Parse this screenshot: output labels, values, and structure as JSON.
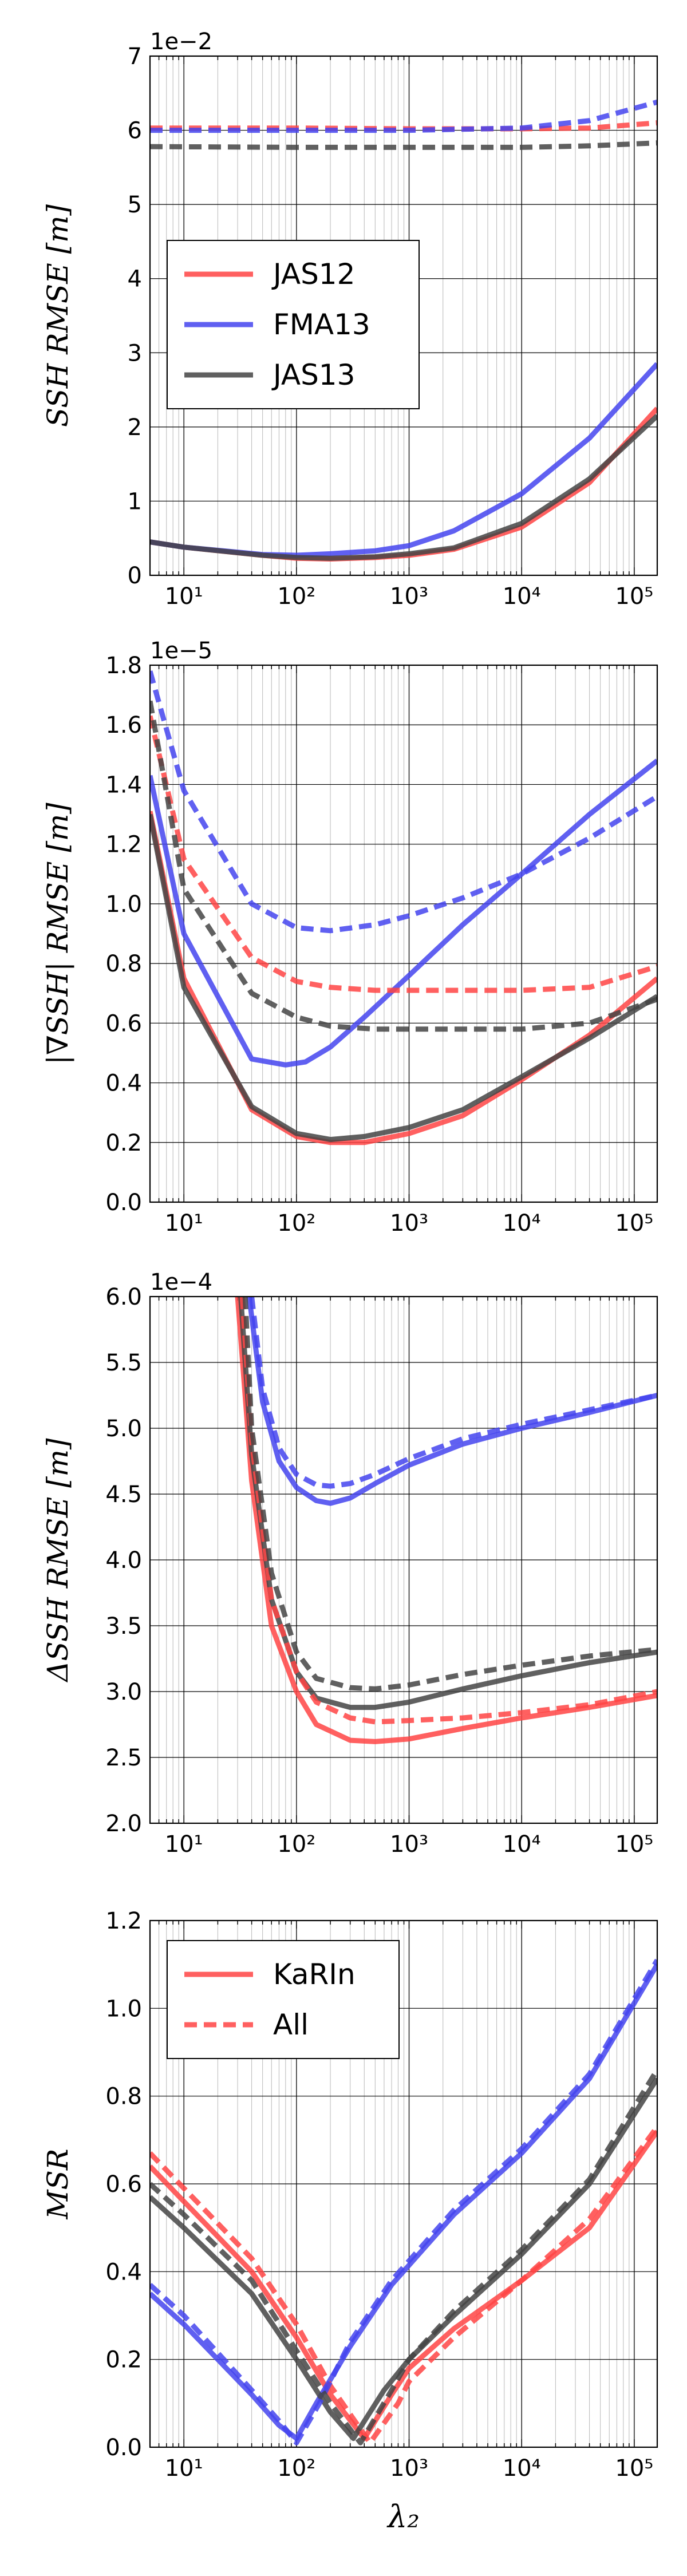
{
  "figure": {
    "xlabel": "λ₂",
    "x_tick_labels": [
      "10¹",
      "10²",
      "10³",
      "10⁴",
      "10⁵"
    ]
  },
  "chart_data": [
    {
      "type": "line",
      "xscale": "log",
      "xlim": [
        5,
        160000
      ],
      "ylim": [
        0,
        0.07
      ],
      "scale_label": "1e−2",
      "ylabel": "SSH RMSE [m]",
      "yticks": [
        0,
        0.01,
        0.02,
        0.03,
        0.04,
        0.05,
        0.06,
        0.07
      ],
      "ytick_labels": [
        "0",
        "1",
        "2",
        "3",
        "4",
        "5",
        "6",
        "7"
      ],
      "grid": true,
      "legend": {
        "position": "upper-left",
        "entries": [
          "JAS12",
          "FMA13",
          "JAS13"
        ]
      },
      "series": [
        {
          "name": "JAS12",
          "color": "#ff4444",
          "style": "solid",
          "x": [
            5,
            10,
            50,
            100,
            200,
            500,
            1000,
            2500,
            10000,
            40000,
            160000
          ],
          "y": [
            0.0045,
            0.0038,
            0.0027,
            0.0023,
            0.0022,
            0.0024,
            0.0027,
            0.0035,
            0.0065,
            0.0125,
            0.0225
          ]
        },
        {
          "name": "FMA13",
          "color": "#4444ee",
          "style": "solid",
          "x": [
            5,
            10,
            50,
            100,
            200,
            500,
            1000,
            2500,
            10000,
            40000,
            160000
          ],
          "y": [
            0.0045,
            0.0038,
            0.0028,
            0.0027,
            0.0029,
            0.0033,
            0.004,
            0.006,
            0.011,
            0.0185,
            0.0285
          ]
        },
        {
          "name": "JAS13",
          "color": "#444444",
          "style": "solid",
          "x": [
            5,
            10,
            50,
            100,
            200,
            500,
            1000,
            2500,
            10000,
            40000,
            160000
          ],
          "y": [
            0.0045,
            0.0038,
            0.0027,
            0.0024,
            0.0023,
            0.0025,
            0.0029,
            0.0037,
            0.007,
            0.013,
            0.0215
          ]
        },
        {
          "name": "JAS12 (All)",
          "color": "#ff4444",
          "style": "dashed",
          "x": [
            5,
            100,
            1000,
            10000,
            40000,
            160000
          ],
          "y": [
            0.0603,
            0.0603,
            0.0602,
            0.0602,
            0.0603,
            0.061
          ]
        },
        {
          "name": "FMA13 (All)",
          "color": "#4444ee",
          "style": "dashed",
          "x": [
            5,
            100,
            1000,
            10000,
            40000,
            160000
          ],
          "y": [
            0.06,
            0.06,
            0.06,
            0.0603,
            0.0613,
            0.0638
          ]
        },
        {
          "name": "JAS13 (All)",
          "color": "#444444",
          "style": "dashed",
          "x": [
            5,
            100,
            1000,
            10000,
            40000,
            160000
          ],
          "y": [
            0.0578,
            0.0577,
            0.0577,
            0.0577,
            0.0579,
            0.0583
          ]
        }
      ]
    },
    {
      "type": "line",
      "xscale": "log",
      "xlim": [
        5,
        160000
      ],
      "ylim": [
        0,
        1.8e-05
      ],
      "scale_label": "1e−5",
      "ylabel": "|∇SSH| RMSE [m]",
      "yticks": [
        0,
        2e-06,
        4e-06,
        6e-06,
        8e-06,
        1e-05,
        1.2e-05,
        1.4e-05,
        1.6e-05,
        1.8e-05
      ],
      "ytick_labels": [
        "0.0",
        "0.2",
        "0.4",
        "0.6",
        "0.8",
        "1.0",
        "1.2",
        "1.4",
        "1.6",
        "1.8"
      ],
      "grid": true,
      "series": [
        {
          "name": "JAS12",
          "color": "#ff4444",
          "style": "solid",
          "x": [
            5,
            10,
            40,
            100,
            200,
            400,
            1000,
            3000,
            10000,
            40000,
            160000
          ],
          "y": [
            1.31e-05,
            7.5e-06,
            3.1e-06,
            2.2e-06,
            2e-06,
            2e-06,
            2.3e-06,
            2.9e-06,
            4.1e-06,
            5.6e-06,
            7.5e-06
          ]
        },
        {
          "name": "FMA13",
          "color": "#4444ee",
          "style": "solid",
          "x": [
            5,
            10,
            40,
            80,
            120,
            200,
            400,
            1000,
            3000,
            10000,
            40000,
            160000
          ],
          "y": [
            1.43e-05,
            9e-06,
            4.8e-06,
            4.6e-06,
            4.7e-06,
            5.2e-06,
            6.2e-06,
            7.6e-06,
            9.3e-06,
            1.1e-05,
            1.3e-05,
            1.48e-05
          ]
        },
        {
          "name": "JAS13",
          "color": "#444444",
          "style": "solid",
          "x": [
            5,
            10,
            40,
            100,
            200,
            400,
            1000,
            3000,
            10000,
            40000,
            160000
          ],
          "y": [
            1.3e-05,
            7.2e-06,
            3.2e-06,
            2.3e-06,
            2.1e-06,
            2.2e-06,
            2.5e-06,
            3.1e-06,
            4.2e-06,
            5.5e-06,
            6.9e-06
          ]
        },
        {
          "name": "JAS12 (All)",
          "color": "#ff4444",
          "style": "dashed",
          "x": [
            5,
            10,
            40,
            100,
            200,
            500,
            1000,
            10000,
            40000,
            160000
          ],
          "y": [
            1.63e-05,
            1.15e-05,
            8.2e-06,
            7.4e-06,
            7.2e-06,
            7.1e-06,
            7.1e-06,
            7.1e-06,
            7.2e-06,
            7.9e-06
          ]
        },
        {
          "name": "FMA13 (All)",
          "color": "#4444ee",
          "style": "dashed",
          "x": [
            5,
            10,
            40,
            100,
            200,
            500,
            1000,
            3000,
            10000,
            40000,
            160000
          ],
          "y": [
            1.78e-05,
            1.38e-05,
            1e-05,
            9.2e-06,
            9.1e-06,
            9.3e-06,
            9.6e-06,
            1.02e-05,
            1.1e-05,
            1.22e-05,
            1.36e-05
          ]
        },
        {
          "name": "JAS13 (All)",
          "color": "#444444",
          "style": "dashed",
          "x": [
            5,
            10,
            40,
            100,
            200,
            500,
            1000,
            10000,
            40000,
            160000
          ],
          "y": [
            1.68e-05,
            1.05e-05,
            7e-06,
            6.2e-06,
            5.9e-06,
            5.8e-06,
            5.8e-06,
            5.8e-06,
            6e-06,
            6.8e-06
          ]
        }
      ]
    },
    {
      "type": "line",
      "xscale": "log",
      "xlim": [
        5,
        160000
      ],
      "ylim": [
        0.0002,
        0.0006
      ],
      "scale_label": "1e−4",
      "ylabel": "ΔSSH RMSE [m]",
      "yticks": [
        0.0002,
        0.00025,
        0.0003,
        0.00035,
        0.0004,
        0.00045,
        0.0005,
        0.00055,
        0.0006
      ],
      "ytick_labels": [
        "2.0",
        "2.5",
        "3.0",
        "3.5",
        "4.0",
        "4.5",
        "5.0",
        "5.5",
        "6.0"
      ],
      "grid": true,
      "series": [
        {
          "name": "JAS12",
          "color": "#ff4444",
          "style": "solid",
          "x": [
            30,
            40,
            60,
            100,
            150,
            300,
            500,
            1000,
            3000,
            10000,
            40000,
            160000
          ],
          "y": [
            0.0006,
            0.00046,
            0.00035,
            0.0003,
            0.000275,
            0.000263,
            0.000262,
            0.000264,
            0.000272,
            0.00028,
            0.000288,
            0.000297
          ]
        },
        {
          "name": "FMA13",
          "color": "#4444ee",
          "style": "solid",
          "x": [
            38,
            50,
            70,
            100,
            150,
            200,
            300,
            500,
            1000,
            3000,
            10000,
            40000,
            160000
          ],
          "y": [
            0.0006,
            0.00052,
            0.000475,
            0.000455,
            0.000445,
            0.000443,
            0.000447,
            0.000458,
            0.000472,
            0.000488,
            0.0005,
            0.000512,
            0.000525
          ]
        },
        {
          "name": "JAS13",
          "color": "#444444",
          "style": "solid",
          "x": [
            32,
            40,
            60,
            100,
            150,
            300,
            500,
            1000,
            3000,
            10000,
            40000,
            160000
          ],
          "y": [
            0.0006,
            0.00048,
            0.00037,
            0.000315,
            0.000295,
            0.000288,
            0.000288,
            0.000292,
            0.000302,
            0.000312,
            0.000322,
            0.00033
          ]
        },
        {
          "name": "JAS12 (All)",
          "color": "#ff4444",
          "style": "dashed",
          "x": [
            33,
            40,
            60,
            100,
            150,
            300,
            500,
            1000,
            3000,
            10000,
            40000,
            160000
          ],
          "y": [
            0.0006,
            0.00049,
            0.00037,
            0.000315,
            0.000292,
            0.00028,
            0.000277,
            0.000278,
            0.00028,
            0.000284,
            0.00029,
            0.0003
          ]
        },
        {
          "name": "FMA13 (All)",
          "color": "#4444ee",
          "style": "dashed",
          "x": [
            40,
            50,
            70,
            100,
            150,
            200,
            300,
            500,
            1000,
            3000,
            10000,
            40000,
            160000
          ],
          "y": [
            0.0006,
            0.00053,
            0.000485,
            0.000465,
            0.000457,
            0.000456,
            0.000458,
            0.000465,
            0.000477,
            0.000492,
            0.000503,
            0.000514,
            0.000525
          ]
        },
        {
          "name": "JAS13 (All)",
          "color": "#444444",
          "style": "dashed",
          "x": [
            35,
            40,
            60,
            100,
            150,
            300,
            500,
            1000,
            3000,
            10000,
            40000,
            160000
          ],
          "y": [
            0.0006,
            0.0005,
            0.00039,
            0.00033,
            0.00031,
            0.000303,
            0.000302,
            0.000305,
            0.000313,
            0.00032,
            0.000327,
            0.000332
          ]
        }
      ]
    },
    {
      "type": "line",
      "xscale": "log",
      "xlim": [
        5,
        160000
      ],
      "ylim": [
        0,
        1.2
      ],
      "ylabel": "MSR",
      "yticks": [
        0,
        0.2,
        0.4,
        0.6,
        0.8,
        1.0,
        1.2
      ],
      "ytick_labels": [
        "0.0",
        "0.2",
        "0.4",
        "0.6",
        "0.8",
        "1.0",
        "1.2"
      ],
      "grid": true,
      "legend": {
        "position": "upper-left",
        "entries": [
          "KaRIn",
          "All"
        ]
      },
      "series": [
        {
          "name": "JAS12",
          "color": "#ff4444",
          "style": "solid",
          "x": [
            5,
            10,
            40,
            100,
            200,
            400,
            700,
            1000,
            2500,
            10000,
            40000,
            160000
          ],
          "y": [
            0.64,
            0.56,
            0.4,
            0.25,
            0.12,
            0.02,
            0.12,
            0.18,
            0.27,
            0.38,
            0.5,
            0.72
          ]
        },
        {
          "name": "FMA13",
          "color": "#4444ee",
          "style": "solid",
          "x": [
            5,
            10,
            40,
            70,
            100,
            150,
            300,
            700,
            2500,
            10000,
            40000,
            160000
          ],
          "y": [
            0.35,
            0.28,
            0.12,
            0.05,
            0.02,
            0.1,
            0.23,
            0.37,
            0.53,
            0.67,
            0.84,
            1.1
          ]
        },
        {
          "name": "JAS13",
          "color": "#444444",
          "style": "solid",
          "x": [
            5,
            10,
            40,
            100,
            200,
            320,
            600,
            1000,
            2500,
            10000,
            40000,
            160000
          ],
          "y": [
            0.57,
            0.5,
            0.35,
            0.2,
            0.08,
            0.02,
            0.13,
            0.2,
            0.3,
            0.44,
            0.6,
            0.84
          ]
        },
        {
          "name": "JAS12 (All)",
          "color": "#ff4444",
          "style": "dashed",
          "x": [
            5,
            10,
            40,
            100,
            200,
            450,
            800,
            1000,
            2500,
            10000,
            40000,
            160000
          ],
          "y": [
            0.67,
            0.59,
            0.43,
            0.28,
            0.14,
            0.01,
            0.1,
            0.15,
            0.25,
            0.38,
            0.52,
            0.73
          ]
        },
        {
          "name": "FMA13 (All)",
          "color": "#4444ee",
          "style": "dashed",
          "x": [
            5,
            10,
            40,
            70,
            100,
            160,
            300,
            700,
            2500,
            10000,
            40000,
            160000
          ],
          "y": [
            0.37,
            0.3,
            0.13,
            0.06,
            0.01,
            0.1,
            0.24,
            0.38,
            0.54,
            0.68,
            0.85,
            1.11
          ]
        },
        {
          "name": "JAS13 (All)",
          "color": "#444444",
          "style": "dashed",
          "x": [
            5,
            10,
            40,
            100,
            200,
            370,
            700,
            1000,
            2500,
            10000,
            40000,
            160000
          ],
          "y": [
            0.6,
            0.53,
            0.38,
            0.22,
            0.1,
            0.01,
            0.13,
            0.2,
            0.31,
            0.45,
            0.61,
            0.86
          ]
        }
      ]
    }
  ]
}
